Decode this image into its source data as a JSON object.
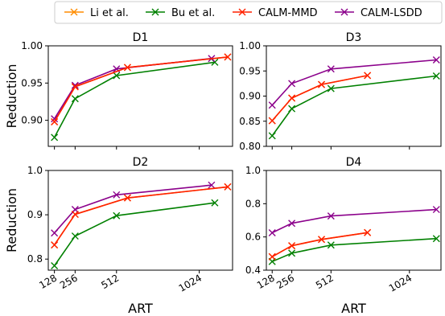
{
  "chart_data": {
    "type": "line",
    "legend": {
      "placement": "top-center",
      "entries": [
        {
          "name": "Li et al.",
          "color": "#ff8c00"
        },
        {
          "name": "Bu et al.",
          "color": "#008000"
        },
        {
          "name": "CALM-MMD",
          "color": "#ff2000"
        },
        {
          "name": "CALM-LSDD",
          "color": "#8b008b"
        }
      ]
    },
    "marker": "x",
    "xlim": [
      90,
      1230
    ],
    "x_ticks": [
      128,
      256,
      512,
      1024
    ],
    "panels": [
      {
        "title": "D1",
        "ylabel": "Reduction",
        "xlabel": "",
        "ylim": [
          0.865,
          1.0
        ],
        "y_ticks": [
          0.9,
          0.95,
          1.0
        ],
        "y_tick_labels": [
          "0.90",
          "0.95",
          "1.00"
        ],
        "show_x_tick_labels": false,
        "series": [
          {
            "name": "Li et al.",
            "x": [
              128,
              256,
              580,
              1200
            ],
            "y": [
              0.898,
              0.945,
              0.971,
              0.985
            ]
          },
          {
            "name": "Bu et al.",
            "x": [
              128,
              256,
              512,
              1120
            ],
            "y": [
              0.877,
              0.929,
              0.96,
              0.978
            ]
          },
          {
            "name": "CALM-MMD",
            "x": [
              128,
              256,
              580,
              1200
            ],
            "y": [
              0.898,
              0.945,
              0.971,
              0.985
            ]
          },
          {
            "name": "CALM-LSDD",
            "x": [
              128,
              256,
              512,
              1100
            ],
            "y": [
              0.902,
              0.947,
              0.969,
              0.983
            ]
          }
        ]
      },
      {
        "title": "D3",
        "ylabel": "",
        "xlabel": "",
        "ylim": [
          0.8,
          1.0
        ],
        "y_ticks": [
          0.8,
          0.85,
          0.9,
          0.95,
          1.0
        ],
        "y_tick_labels": [
          "0.80",
          "0.85",
          "0.90",
          "0.95",
          "1.00"
        ],
        "show_x_tick_labels": false,
        "series": [
          {
            "name": "Li et al.",
            "x": [
              128,
              256,
              450,
              750
            ],
            "y": [
              0.851,
              0.896,
              0.923,
              0.941
            ]
          },
          {
            "name": "Bu et al.",
            "x": [
              128,
              256,
              512,
              1200
            ],
            "y": [
              0.821,
              0.875,
              0.915,
              0.94
            ]
          },
          {
            "name": "CALM-MMD",
            "x": [
              128,
              256,
              450,
              750
            ],
            "y": [
              0.851,
              0.896,
              0.923,
              0.941
            ]
          },
          {
            "name": "CALM-LSDD",
            "x": [
              128,
              256,
              512,
              1200
            ],
            "y": [
              0.882,
              0.925,
              0.954,
              0.972
            ]
          }
        ]
      },
      {
        "title": "D2",
        "ylabel": "Reduction",
        "xlabel": "ART",
        "ylim": [
          0.775,
          1.0
        ],
        "y_ticks": [
          0.8,
          0.9,
          1.0
        ],
        "y_tick_labels": [
          "0.8",
          "0.9",
          "1.0"
        ],
        "show_x_tick_labels": true,
        "series": [
          {
            "name": "Li et al.",
            "x": [
              128,
              256,
              580,
              1200
            ],
            "y": [
              0.832,
              0.901,
              0.938,
              0.963
            ]
          },
          {
            "name": "Bu et al.",
            "x": [
              128,
              256,
              512,
              1120
            ],
            "y": [
              0.785,
              0.852,
              0.898,
              0.927
            ]
          },
          {
            "name": "CALM-MMD",
            "x": [
              128,
              256,
              580,
              1200
            ],
            "y": [
              0.832,
              0.901,
              0.938,
              0.963
            ]
          },
          {
            "name": "CALM-LSDD",
            "x": [
              128,
              256,
              512,
              1100
            ],
            "y": [
              0.859,
              0.912,
              0.945,
              0.967
            ]
          }
        ]
      },
      {
        "title": "D4",
        "ylabel": "",
        "xlabel": "ART",
        "ylim": [
          0.4,
          1.0
        ],
        "y_ticks": [
          0.4,
          0.6,
          0.8,
          1.0
        ],
        "y_tick_labels": [
          "0.4",
          "0.6",
          "0.8",
          "1.0"
        ],
        "show_x_tick_labels": true,
        "series": [
          {
            "name": "Li et al.",
            "x": [
              128,
              256,
              450,
              750
            ],
            "y": [
              0.481,
              0.547,
              0.585,
              0.626
            ]
          },
          {
            "name": "Bu et al.",
            "x": [
              128,
              256,
              512,
              1200
            ],
            "y": [
              0.452,
              0.502,
              0.551,
              0.59
            ]
          },
          {
            "name": "CALM-MMD",
            "x": [
              128,
              256,
              450,
              750
            ],
            "y": [
              0.481,
              0.547,
              0.585,
              0.626
            ]
          },
          {
            "name": "CALM-LSDD",
            "x": [
              128,
              256,
              512,
              1200
            ],
            "y": [
              0.625,
              0.682,
              0.726,
              0.765
            ]
          }
        ]
      }
    ]
  }
}
